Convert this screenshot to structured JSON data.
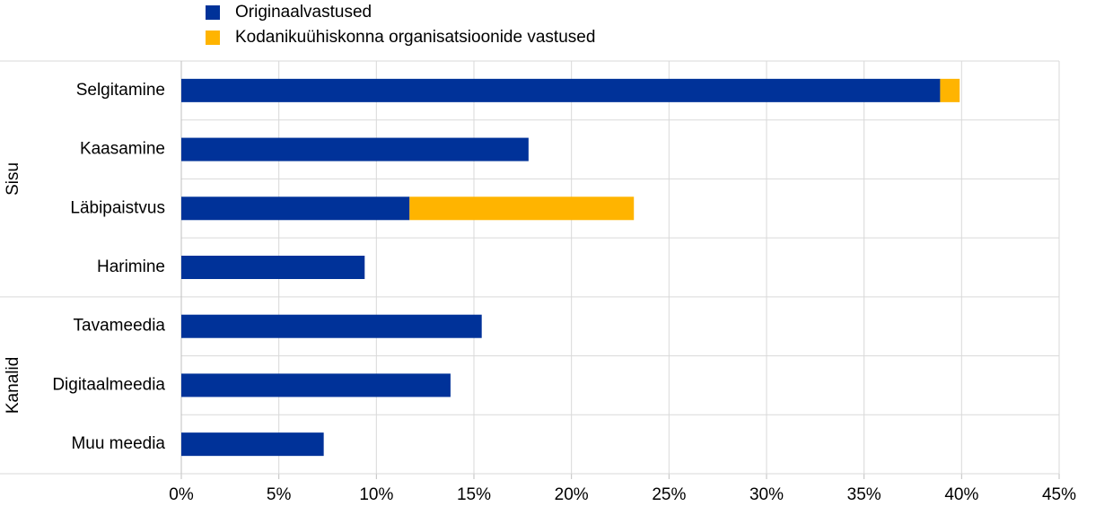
{
  "chart_data": {
    "type": "stacked-barh",
    "categories": [
      "Selgitamine",
      "Kaasamine",
      "Läbipaistvus",
      "Harimine",
      "Tavameedia",
      "Digitaalmeedia",
      "Muu meedia"
    ],
    "category_groups": [
      "Sisu",
      "Sisu",
      "Sisu",
      "Sisu",
      "Kanalid",
      "Kanalid",
      "Kanalid"
    ],
    "series": [
      {
        "name": "Originaalvastused",
        "color": "#003299",
        "values": [
          38.9,
          17.8,
          11.7,
          9.4,
          15.4,
          13.8,
          7.3
        ]
      },
      {
        "name": "Kodanikuühiskonna organisatsioonide vastused",
        "color": "#ffb400",
        "values": [
          1.0,
          0,
          11.5,
          0,
          0,
          0,
          0
        ]
      }
    ],
    "xlim": [
      0,
      45
    ],
    "xticks": [
      {
        "value": 0,
        "label": "0%"
      },
      {
        "value": 5,
        "label": "5%"
      },
      {
        "value": 10,
        "label": "10%"
      },
      {
        "value": 15,
        "label": "15%"
      },
      {
        "value": 20,
        "label": "20%"
      },
      {
        "value": 25,
        "label": "25%"
      },
      {
        "value": 30,
        "label": "30%"
      },
      {
        "value": 35,
        "label": "35%"
      },
      {
        "value": 40,
        "label": "40%"
      },
      {
        "value": 45,
        "label": "45%"
      }
    ],
    "grid": true
  }
}
